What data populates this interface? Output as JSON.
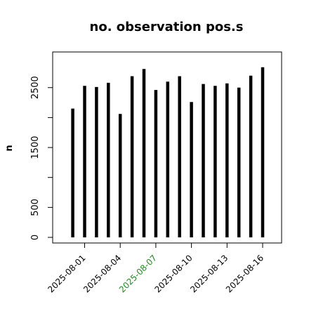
{
  "chart_data": {
    "type": "bar",
    "title": "no. observation pos.s",
    "xlabel": "",
    "ylabel": "n",
    "x_start": "2025-08-01",
    "categories": [
      "2025-07-31",
      "2025-08-01",
      "2025-08-02",
      "2025-08-03",
      "2025-08-04",
      "2025-08-05",
      "2025-08-06",
      "2025-08-07",
      "2025-08-08",
      "2025-08-09",
      "2025-08-10",
      "2025-08-11",
      "2025-08-12",
      "2025-08-13",
      "2025-08-14",
      "2025-08-15",
      "2025-08-16"
    ],
    "values": [
      2150,
      2530,
      2510,
      2580,
      2060,
      2690,
      2810,
      2460,
      2600,
      2690,
      2260,
      2560,
      2530,
      2570,
      2500,
      2700,
      2840
    ],
    "ylim": [
      -50,
      3050
    ],
    "yticks": [
      0,
      500,
      1500,
      2500
    ],
    "ytick_labels": [
      "0",
      "500",
      "1500",
      "2500"
    ],
    "xticks": [
      "2025-08-01",
      "2025-08-04",
      "2025-08-07",
      "2025-08-10",
      "2025-08-13",
      "2025-08-16"
    ],
    "xtick_colors": [
      "#000000",
      "#000000",
      "#228B22",
      "#000000",
      "#000000",
      "#000000"
    ],
    "bar_color": "#000000",
    "grid": false,
    "legend": "none"
  }
}
